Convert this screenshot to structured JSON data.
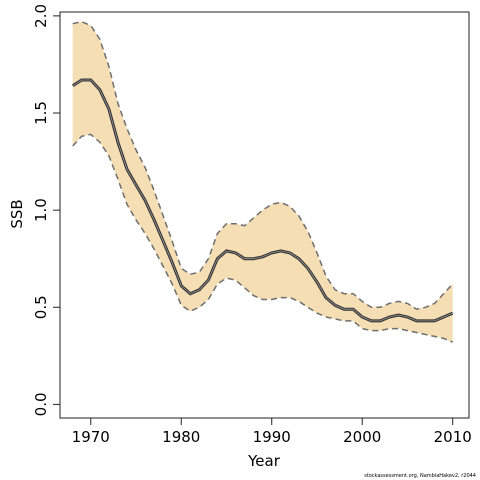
{
  "chart_data": {
    "type": "line",
    "title": "",
    "xlabel": "Year",
    "ylabel": "SSB",
    "xlim": [
      1966.6,
      2011.8
    ],
    "ylim": [
      -0.07,
      2.02
    ],
    "x_ticks": [
      1970,
      1980,
      1990,
      2000,
      2010
    ],
    "y_ticks": [
      0.0,
      0.5,
      1.0,
      1.5,
      2.0
    ],
    "x_tick_labels": [
      "1970",
      "1980",
      "1990",
      "2000",
      "2010"
    ],
    "y_tick_labels": [
      "0.0",
      "0.5",
      "1.0",
      "1.5",
      "2.0"
    ],
    "grid": false,
    "legend": "none",
    "colors": {
      "band": "#f5deb3",
      "median": "#333333",
      "bounds": "#6e6e6e",
      "frame": "#222222"
    },
    "x": [
      1968,
      1969,
      1970,
      1971,
      1972,
      1973,
      1974,
      1975,
      1976,
      1977,
      1978,
      1979,
      1980,
      1981,
      1982,
      1983,
      1984,
      1985,
      1986,
      1987,
      1988,
      1989,
      1990,
      1991,
      1992,
      1993,
      1994,
      1995,
      1996,
      1997,
      1998,
      1999,
      2000,
      2001,
      2002,
      2003,
      2004,
      2005,
      2006,
      2007,
      2008,
      2009,
      2010
    ],
    "series": [
      {
        "role": "median",
        "values": [
          1.64,
          1.67,
          1.67,
          1.62,
          1.52,
          1.35,
          1.21,
          1.13,
          1.05,
          0.95,
          0.84,
          0.73,
          0.61,
          0.57,
          0.59,
          0.64,
          0.75,
          0.79,
          0.78,
          0.75,
          0.75,
          0.76,
          0.78,
          0.79,
          0.78,
          0.75,
          0.7,
          0.63,
          0.55,
          0.51,
          0.49,
          0.49,
          0.45,
          0.43,
          0.43,
          0.45,
          0.46,
          0.45,
          0.43,
          0.43,
          0.43,
          0.45,
          0.47
        ]
      },
      {
        "role": "upper",
        "values": [
          1.96,
          1.97,
          1.95,
          1.88,
          1.74,
          1.55,
          1.42,
          1.31,
          1.22,
          1.1,
          0.97,
          0.84,
          0.7,
          0.67,
          0.68,
          0.75,
          0.88,
          0.93,
          0.93,
          0.92,
          0.96,
          1.0,
          1.03,
          1.04,
          1.02,
          0.97,
          0.89,
          0.78,
          0.66,
          0.59,
          0.57,
          0.57,
          0.53,
          0.5,
          0.5,
          0.52,
          0.53,
          0.52,
          0.49,
          0.5,
          0.52,
          0.57,
          0.62
        ]
      },
      {
        "role": "lower",
        "values": [
          1.33,
          1.38,
          1.39,
          1.35,
          1.28,
          1.16,
          1.03,
          0.95,
          0.88,
          0.8,
          0.71,
          0.62,
          0.51,
          0.48,
          0.5,
          0.54,
          0.62,
          0.65,
          0.64,
          0.6,
          0.56,
          0.54,
          0.54,
          0.55,
          0.55,
          0.53,
          0.5,
          0.47,
          0.45,
          0.44,
          0.43,
          0.43,
          0.39,
          0.38,
          0.38,
          0.39,
          0.39,
          0.38,
          0.37,
          0.36,
          0.35,
          0.34,
          0.32
        ]
      }
    ],
    "footer": "stockassessment.org, NambiaHakev2, r2044"
  }
}
